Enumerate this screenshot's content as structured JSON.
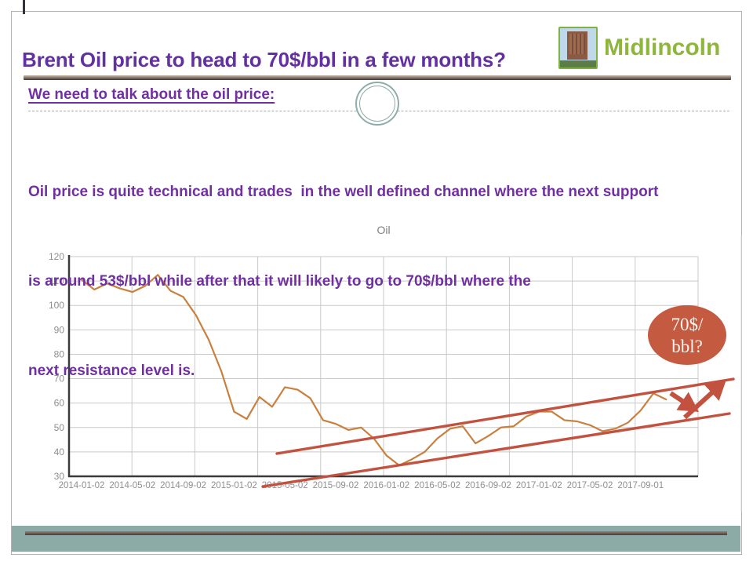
{
  "slide": {
    "title": "Brent Oil price to head to 70$/bbl in a few months?",
    "logo_text": "Midlincoln",
    "heading": "We need to talk about the oil price:",
    "body_lines": [
      "Oil price is quite technical and trades  in the well defined channel where the next support",
      "is around 53$/bbl while after that it will likely to go to 70$/bbl where the",
      "next resistance level is."
    ]
  },
  "colors": {
    "title_purple": "#6230a0",
    "body_purple": "#7030a0",
    "logo_green": "#8db63a",
    "band_sage": "#8caba6",
    "price_line": "#c9803f",
    "annotation_red": "#c2523f",
    "ellipse_fill": "#c45b41",
    "grid_gray": "#c9c9c9",
    "axis_dark": "#3a3a3a",
    "tick_text_gray": "#8e8e8e"
  },
  "chart_data": {
    "type": "line",
    "title": "Oil",
    "x_start_month": "2014-01",
    "x_frequency": "monthly",
    "series": [
      {
        "name": "Oil",
        "values": [
          110.5,
          106.5,
          109,
          107,
          105.5,
          108,
          112.5,
          106,
          103.5,
          96,
          86,
          73,
          56.5,
          53.5,
          62.5,
          58.5,
          66.5,
          65.5,
          62,
          53,
          51.5,
          49,
          50,
          45.5,
          38.5,
          34.5,
          37,
          40,
          45.5,
          49.5,
          50.5,
          43.5,
          46.5,
          50,
          50.5,
          54.5,
          56.5,
          56.5,
          53,
          52.5,
          51,
          48.5,
          49.5,
          52,
          57,
          64,
          61.5
        ]
      }
    ],
    "x_tick_labels": [
      "2014-01-02",
      "2014-05-02",
      "2014-09-02",
      "2015-01-02",
      "2015-05-02",
      "2015-09-02",
      "2016-01-02",
      "2016-05-02",
      "2016-09-02",
      "2017-01-02",
      "2017-05-02",
      "2017-09-01"
    ],
    "y_ticks": [
      30,
      40,
      50,
      60,
      70,
      80,
      90,
      100,
      110,
      120
    ],
    "ylim": [
      30,
      120
    ],
    "grid": true,
    "legend": "none",
    "annotations": {
      "ellipse_label": {
        "line1": "70$/",
        "line2": "bbl?"
      },
      "channel_lines": [
        {
          "name": "resistance-trendline",
          "x1": 353,
          "y1": 578,
          "x2": 935,
          "y2": 483
        },
        {
          "name": "support-trendline",
          "x1": 335,
          "y1": 620,
          "x2": 930,
          "y2": 527
        }
      ],
      "bounce_arrows": [
        {
          "name": "down-arrow",
          "x1": 855,
          "y1": 501,
          "x2": 882,
          "y2": 519
        },
        {
          "name": "up-arrow",
          "x1": 873,
          "y1": 532,
          "x2": 918,
          "y2": 491
        }
      ]
    }
  }
}
